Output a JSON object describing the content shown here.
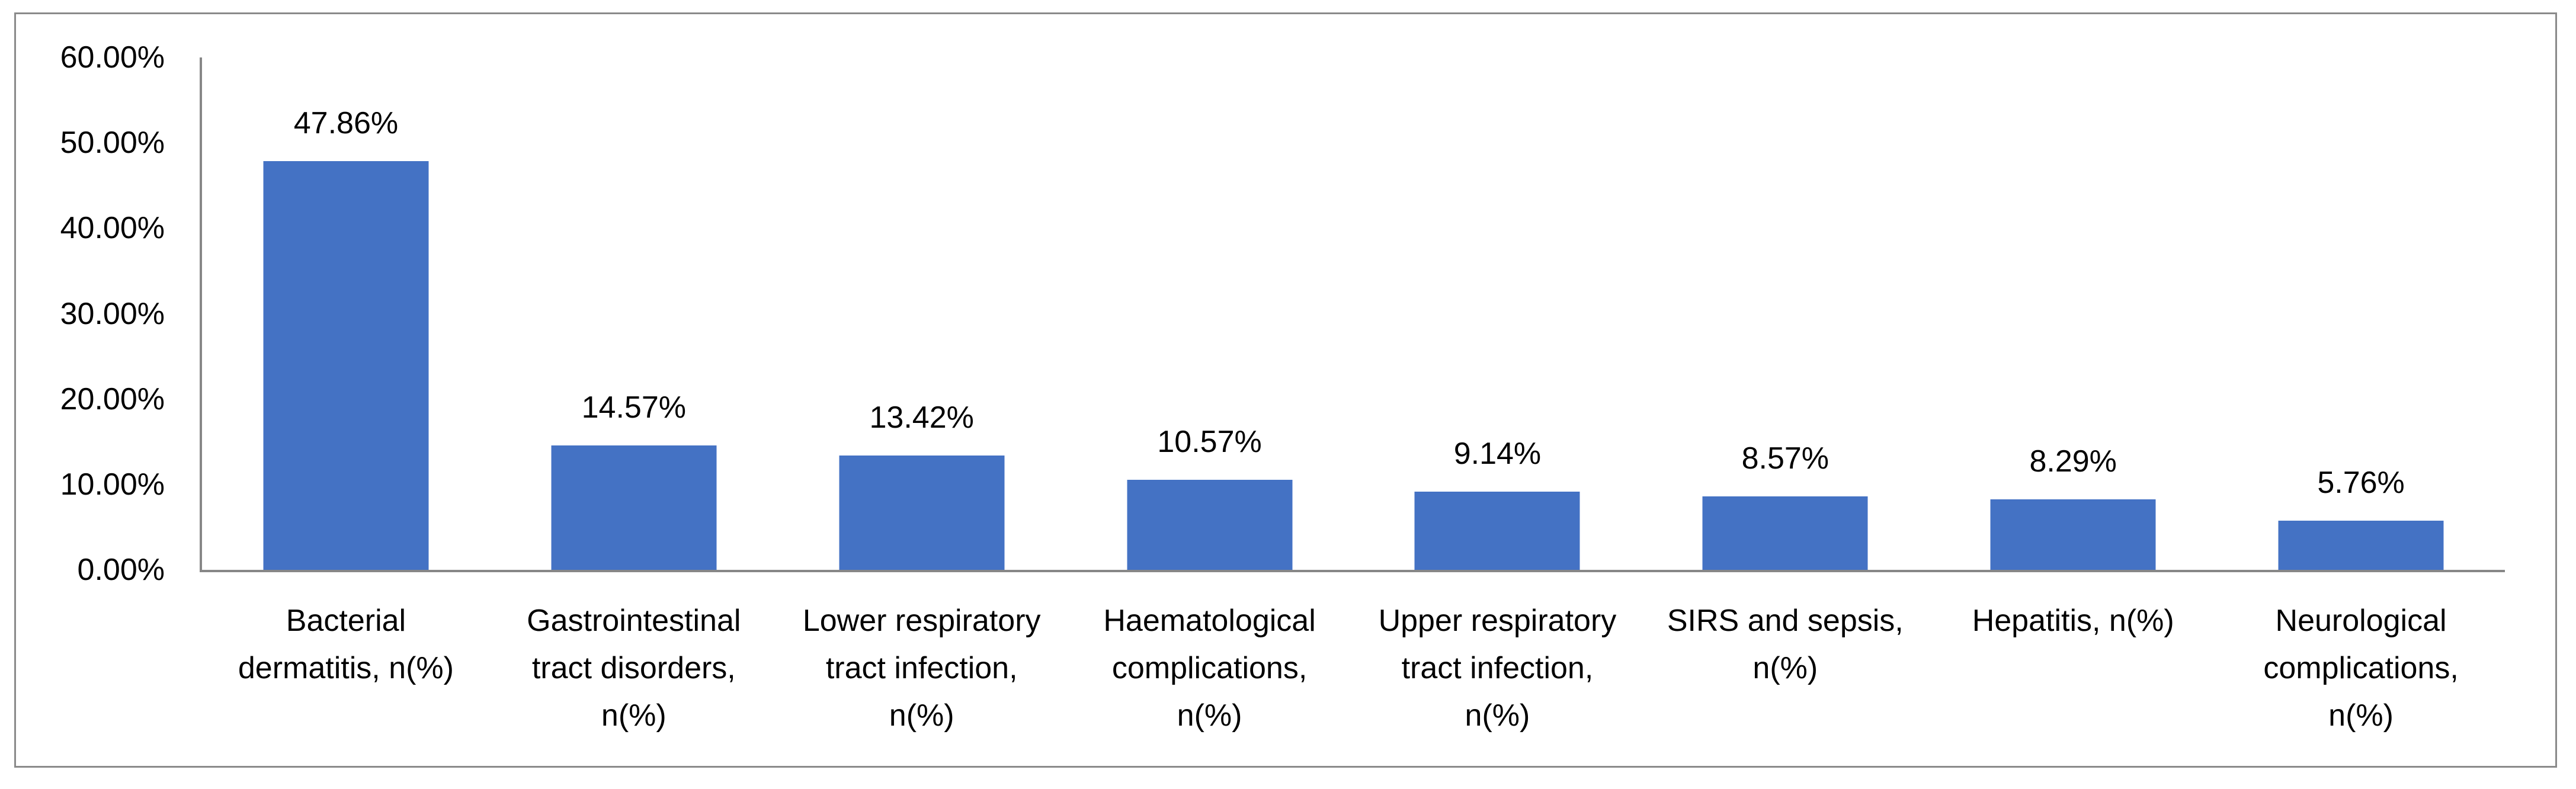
{
  "chart_data": {
    "type": "bar",
    "title": "",
    "categories": [
      "Bacterial\ndermatitis, n(%)",
      "Gastrointestinal\ntract disorders,\nn(%)",
      "Lower respiratory\ntract infection,\nn(%)",
      "Haematological\ncomplications,\nn(%)",
      "Upper respiratory\ntract infection,\nn(%)",
      "SIRS and sepsis,\nn(%)",
      "Hepatitis, n(%)",
      "Neurological\ncomplications,\nn(%)"
    ],
    "values": [
      47.86,
      14.57,
      13.42,
      10.57,
      9.14,
      8.57,
      8.29,
      5.76
    ],
    "data_labels": [
      "47.86%",
      "14.57%",
      "13.42%",
      "10.57%",
      "9.14%",
      "8.57%",
      "8.29%",
      "5.76%"
    ],
    "y_ticks": [
      "0.00%",
      "10.00%",
      "20.00%",
      "30.00%",
      "40.00%",
      "50.00%",
      "60.00%"
    ],
    "ylim": [
      0,
      60
    ],
    "y_tick_step": 10,
    "xlabel": "",
    "ylabel": "",
    "grid": false,
    "legend_position": "none",
    "bar_color": "#4472C4",
    "axis_color": "#878787",
    "border_color": "#8A8A8A",
    "label_color": "#000000"
  }
}
